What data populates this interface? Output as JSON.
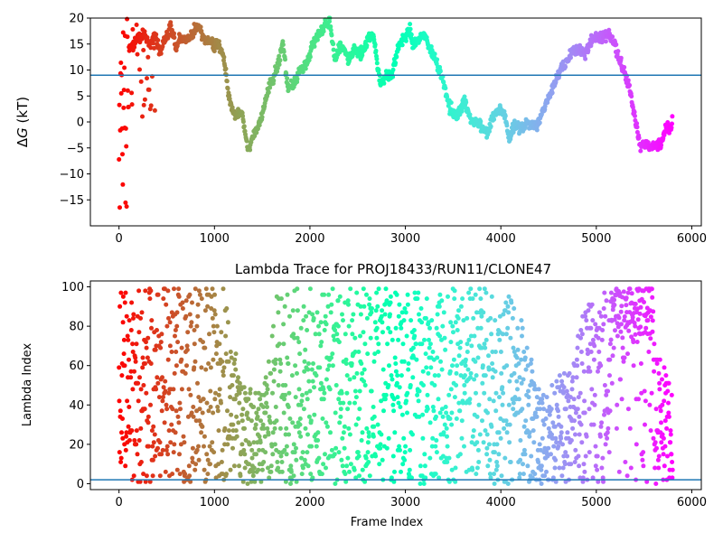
{
  "chart_data": [
    {
      "type": "scatter",
      "title": "",
      "xlabel": "",
      "ylabel": "ΔG (kT)",
      "xlim": [
        -300,
        6100
      ],
      "ylim": [
        -20,
        20
      ],
      "xticks": [
        "0",
        "1000",
        "2000",
        "3000",
        "4000",
        "5000",
        "6000"
      ],
      "yticks": [
        "−15",
        "−10",
        "−5",
        "0",
        "5",
        "10",
        "15",
        "20"
      ],
      "hline": 9,
      "hline_color": "#1f77b4",
      "colormap": "rainbow_r",
      "grid": false,
      "n_frames": 5800,
      "trace_knots": [
        [
          0,
          -16
        ],
        [
          15,
          6
        ],
        [
          30,
          12
        ],
        [
          45,
          15
        ],
        [
          70,
          17
        ],
        [
          100,
          14
        ],
        [
          150,
          15
        ],
        [
          200,
          16
        ],
        [
          260,
          17
        ],
        [
          320,
          15
        ],
        [
          380,
          17
        ],
        [
          430,
          13
        ],
        [
          480,
          16
        ],
        [
          540,
          18
        ],
        [
          600,
          15
        ],
        [
          650,
          16
        ],
        [
          720,
          16
        ],
        [
          780,
          17
        ],
        [
          830,
          19
        ],
        [
          880,
          16
        ],
        [
          980,
          15
        ],
        [
          1040,
          15
        ],
        [
          1100,
          12
        ],
        [
          1150,
          5
        ],
        [
          1200,
          1.5
        ],
        [
          1290,
          1.5
        ],
        [
          1320,
          -2
        ],
        [
          1350,
          -5.5
        ],
        [
          1400,
          -3
        ],
        [
          1480,
          0
        ],
        [
          1560,
          6
        ],
        [
          1620,
          8.5
        ],
        [
          1680,
          12
        ],
        [
          1720,
          15.5
        ],
        [
          1760,
          7
        ],
        [
          1820,
          7
        ],
        [
          1900,
          10
        ],
        [
          1960,
          11
        ],
        [
          2030,
          15
        ],
        [
          2100,
          17
        ],
        [
          2150,
          18.5
        ],
        [
          2210,
          19
        ],
        [
          2260,
          12
        ],
        [
          2320,
          15
        ],
        [
          2400,
          12
        ],
        [
          2460,
          14
        ],
        [
          2540,
          13
        ],
        [
          2610,
          16
        ],
        [
          2660,
          17
        ],
        [
          2700,
          12
        ],
        [
          2740,
          7
        ],
        [
          2800,
          9
        ],
        [
          2860,
          9
        ],
        [
          2920,
          14
        ],
        [
          2980,
          16
        ],
        [
          3040,
          18
        ],
        [
          3080,
          15
        ],
        [
          3140,
          16
        ],
        [
          3200,
          17
        ],
        [
          3260,
          14
        ],
        [
          3340,
          11
        ],
        [
          3400,
          7.5
        ],
        [
          3460,
          3
        ],
        [
          3530,
          1
        ],
        [
          3620,
          4
        ],
        [
          3680,
          0.5
        ],
        [
          3740,
          0
        ],
        [
          3800,
          -1
        ],
        [
          3860,
          -2
        ],
        [
          3920,
          1
        ],
        [
          3980,
          2.5
        ],
        [
          4040,
          1.5
        ],
        [
          4090,
          -3.5
        ],
        [
          4140,
          -0.5
        ],
        [
          4220,
          -1
        ],
        [
          4300,
          0
        ],
        [
          4380,
          -1
        ],
        [
          4460,
          3
        ],
        [
          4560,
          7.5
        ],
        [
          4620,
          10
        ],
        [
          4700,
          12
        ],
        [
          4760,
          13.5
        ],
        [
          4820,
          14
        ],
        [
          4880,
          13
        ],
        [
          4960,
          16
        ],
        [
          5040,
          16
        ],
        [
          5120,
          17
        ],
        [
          5180,
          15.5
        ],
        [
          5240,
          12
        ],
        [
          5300,
          9
        ],
        [
          5350,
          6.5
        ],
        [
          5410,
          0
        ],
        [
          5460,
          -4.5
        ],
        [
          5520,
          -4.5
        ],
        [
          5620,
          -4.5
        ],
        [
          5680,
          -4.5
        ],
        [
          5720,
          -1.5
        ],
        [
          5780,
          -1
        ],
        [
          5800,
          0
        ]
      ],
      "noise_segments": [
        {
          "x_range": [
            0,
            100
          ],
          "y_range": [
            -16.5,
            20
          ]
        },
        {
          "x_range": [
            100,
            400
          ],
          "y_range": [
            0,
            19
          ]
        }
      ]
    },
    {
      "type": "scatter",
      "title": "Lambda Trace for PROJ18433/RUN11/CLONE47",
      "xlabel": "Frame Index",
      "ylabel": "Lambda Index",
      "xlim": [
        -300,
        6100
      ],
      "ylim": [
        -3,
        103
      ],
      "xticks": [
        "0",
        "1000",
        "2000",
        "3000",
        "4000",
        "5000",
        "6000"
      ],
      "yticks": [
        "0",
        "20",
        "40",
        "60",
        "80",
        "100"
      ],
      "hline": 2,
      "hline_color": "#1f77b4",
      "colormap": "rainbow_r",
      "grid": false,
      "n_frames": 5800,
      "upper_envelope_knots": [
        [
          0,
          100
        ],
        [
          1100,
          100
        ],
        [
          1250,
          60
        ],
        [
          1350,
          50
        ],
        [
          1450,
          45
        ],
        [
          1560,
          60
        ],
        [
          1640,
          95
        ],
        [
          1700,
          100
        ],
        [
          3000,
          100
        ],
        [
          3300,
          95
        ],
        [
          3500,
          100
        ],
        [
          4000,
          100
        ],
        [
          4150,
          95
        ],
        [
          4300,
          70
        ],
        [
          4450,
          45
        ],
        [
          4600,
          55
        ],
        [
          4750,
          65
        ],
        [
          4900,
          95
        ],
        [
          5100,
          100
        ],
        [
          5400,
          100
        ],
        [
          5550,
          90
        ],
        [
          5650,
          65
        ],
        [
          5800,
          50
        ]
      ],
      "dense_band": {
        "x_range": [
          5150,
          5600
        ],
        "y_range": [
          72,
          100
        ]
      }
    }
  ]
}
